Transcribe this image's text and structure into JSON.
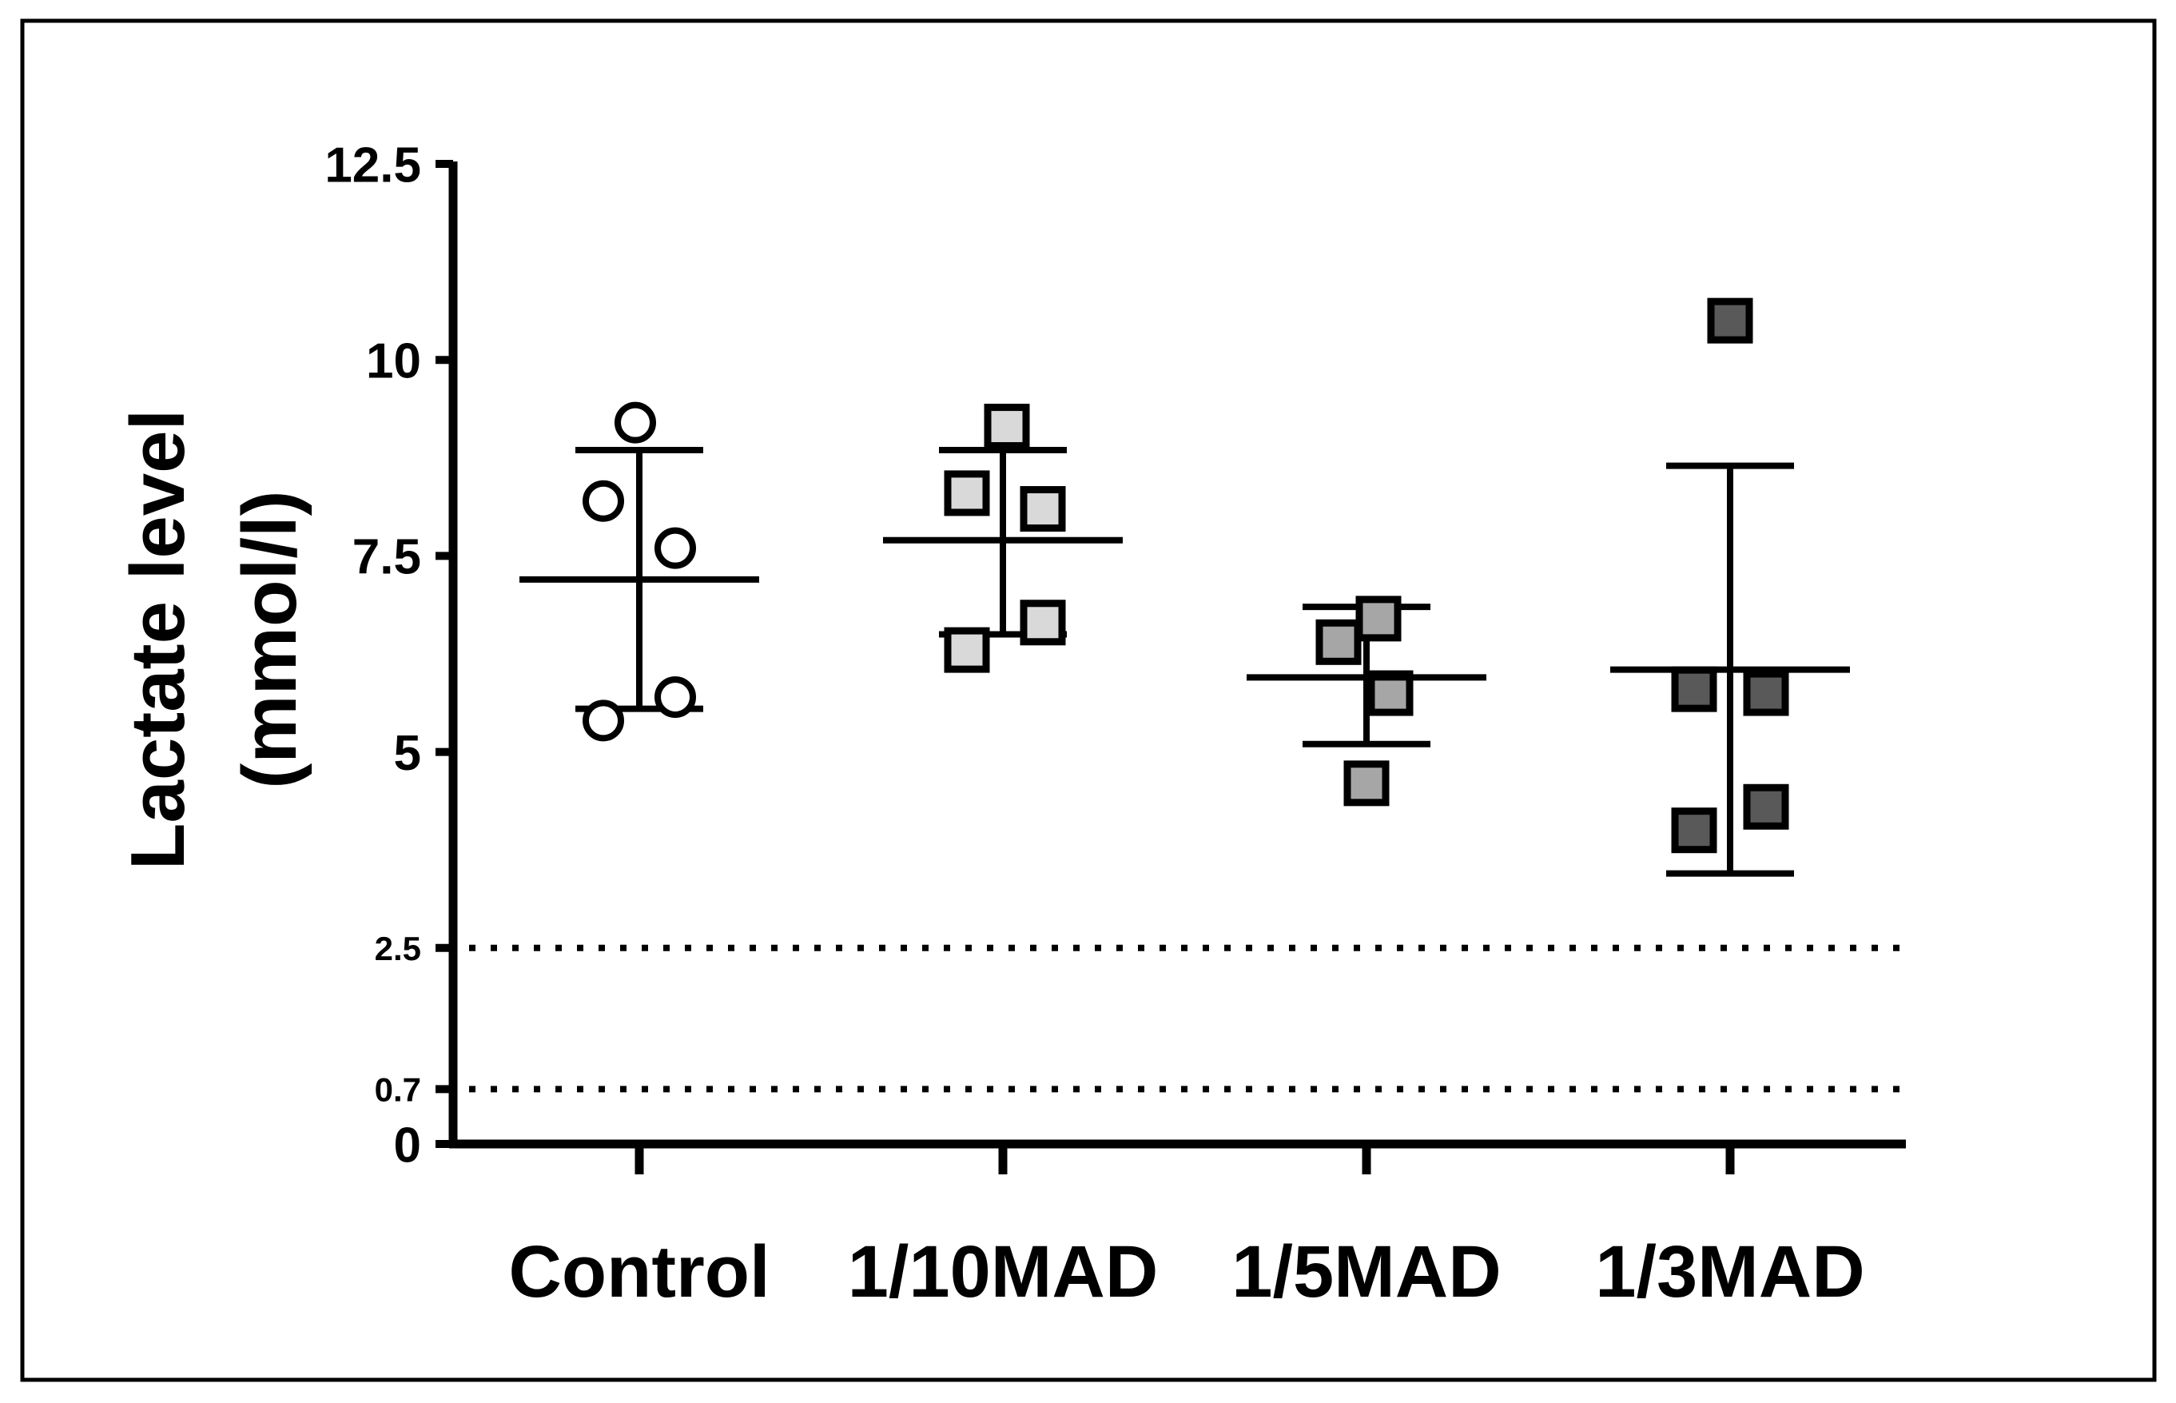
{
  "chart_data": {
    "type": "scatter",
    "title": "",
    "xlabel": "",
    "ylabel_line1": "Lactate level",
    "ylabel_line2": "(mmol/l)",
    "ylim": [
      0,
      12.5
    ],
    "yticks": [
      {
        "value": 12.5,
        "label": "12.5"
      },
      {
        "value": 10,
        "label": "10"
      },
      {
        "value": 7.5,
        "label": "7.5"
      },
      {
        "value": 5,
        "label": "5"
      },
      {
        "value": 2.5,
        "label": "2.5"
      },
      {
        "value": 0.7,
        "label": "0.7"
      },
      {
        "value": 0,
        "label": "0"
      }
    ],
    "reference_lines": [
      {
        "value": 2.5,
        "style": "dotted"
      },
      {
        "value": 0.7,
        "style": "dotted"
      }
    ],
    "categories": [
      "Control",
      "1/10MAD",
      "1/5MAD",
      "1/3MAD"
    ],
    "groups": [
      {
        "name": "Control",
        "marker": "circle",
        "fill": "#ffffff",
        "points": [
          9.2,
          8.2,
          7.6,
          5.7,
          5.4
        ],
        "mean": 7.2,
        "upper": 8.85,
        "lower": 5.55
      },
      {
        "name": "1/10MAD",
        "marker": "square",
        "fill": "#d9d9d9",
        "points": [
          9.15,
          8.3,
          8.1,
          6.65,
          6.3
        ],
        "mean": 7.7,
        "upper": 8.85,
        "lower": 6.5
      },
      {
        "name": "1/5MAD",
        "marker": "square",
        "fill": "#a6a6a6",
        "points": [
          6.7,
          6.4,
          5.75,
          4.6
        ],
        "mean": 5.95,
        "upper": 6.85,
        "lower": 5.1
      },
      {
        "name": "1/3MAD",
        "marker": "square",
        "fill": "#595959",
        "points": [
          10.5,
          5.8,
          5.75,
          4.3,
          4.0
        ],
        "mean": 6.05,
        "upper": 8.65,
        "lower": 3.45
      }
    ]
  }
}
